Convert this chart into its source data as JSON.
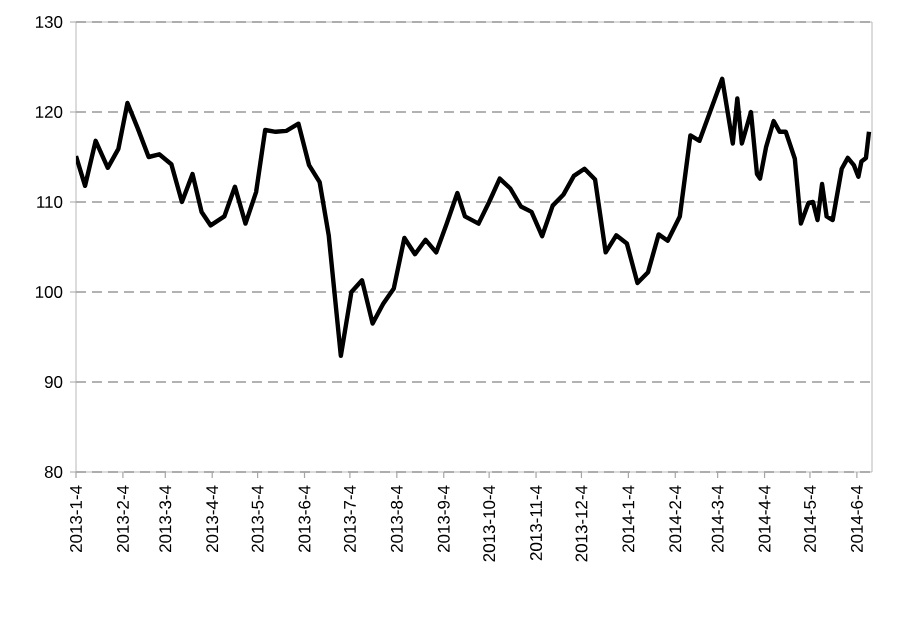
{
  "chart_data": {
    "type": "line",
    "color": "#000000",
    "line_style": "solid",
    "grid": "y",
    "x": [
      "2013-01-04",
      "2013-01-10",
      "2013-01-17",
      "2013-01-25",
      "2013-02-01",
      "2013-02-07",
      "2013-02-14",
      "2013-02-21",
      "2013-02-28",
      "2013-03-08",
      "2013-03-15",
      "2013-03-22",
      "2013-03-28",
      "2013-04-03",
      "2013-04-12",
      "2013-04-19",
      "2013-04-26",
      "2013-05-03",
      "2013-05-09",
      "2013-05-16",
      "2013-05-23",
      "2013-05-31",
      "2013-06-07",
      "2013-06-14",
      "2013-06-20",
      "2013-06-28",
      "2013-07-05",
      "2013-07-12",
      "2013-07-19",
      "2013-07-26",
      "2013-08-02",
      "2013-08-09",
      "2013-08-16",
      "2013-08-23",
      "2013-08-30",
      "2013-09-06",
      "2013-09-13",
      "2013-09-18",
      "2013-09-27",
      "2013-10-04",
      "2013-10-11",
      "2013-10-18",
      "2013-10-25",
      "2013-11-01",
      "2013-11-08",
      "2013-11-15",
      "2013-11-22",
      "2013-11-29",
      "2013-12-06",
      "2013-12-13",
      "2013-12-20",
      "2013-12-27",
      "2014-01-03",
      "2014-01-10",
      "2014-01-17",
      "2014-01-24",
      "2014-01-30",
      "2014-02-07",
      "2014-02-14",
      "2014-02-20",
      "2014-03-07",
      "2014-03-14",
      "2014-03-17",
      "2014-03-20",
      "2014-03-26",
      "2014-03-30",
      "2014-04-01",
      "2014-04-05",
      "2014-04-10",
      "2014-04-14",
      "2014-04-18",
      "2014-04-24",
      "2014-04-28",
      "2014-05-03",
      "2014-05-06",
      "2014-05-09",
      "2014-05-12",
      "2014-05-15",
      "2014-05-19",
      "2014-05-25",
      "2014-05-29",
      "2014-06-02",
      "2014-06-05",
      "2014-06-07",
      "2014-06-10",
      "2014-06-12"
    ],
    "values": [
      115.1,
      111.8,
      116.8,
      113.8,
      115.9,
      121.0,
      118.1,
      115.0,
      115.3,
      114.2,
      110.0,
      113.1,
      108.9,
      107.4,
      108.4,
      111.7,
      107.6,
      111.1,
      118.0,
      117.8,
      117.9,
      118.7,
      114.1,
      112.2,
      106.3,
      92.9,
      100.0,
      101.3,
      96.5,
      98.7,
      100.4,
      106.0,
      104.2,
      105.8,
      104.4,
      107.6,
      111.0,
      108.4,
      107.6,
      110.0,
      112.6,
      111.5,
      109.5,
      108.9,
      106.2,
      109.6,
      110.8,
      112.9,
      113.7,
      112.5,
      104.4,
      106.3,
      105.4,
      101.0,
      102.2,
      106.4,
      105.7,
      108.4,
      117.4,
      116.8,
      123.7,
      116.5,
      121.5,
      116.5,
      120.0,
      113.1,
      112.6,
      116.1,
      119.0,
      117.8,
      117.8,
      114.8,
      107.6,
      109.9,
      110.0,
      108.0,
      112.0,
      108.4,
      108.0,
      113.7,
      114.9,
      114.1,
      112.8,
      114.5,
      114.9,
      117.8
    ],
    "xlim": [
      "2013-01-04",
      "2014-06-14"
    ],
    "xticks": [
      {
        "value": "2013-01-04",
        "label": "2013-1-4"
      },
      {
        "value": "2013-02-04",
        "label": "2013-2-4"
      },
      {
        "value": "2013-03-04",
        "label": "2013-3-4"
      },
      {
        "value": "2013-04-04",
        "label": "2013-4-4"
      },
      {
        "value": "2013-05-04",
        "label": "2013-5-4"
      },
      {
        "value": "2013-06-04",
        "label": "2013-6-4"
      },
      {
        "value": "2013-07-04",
        "label": "2013-7-4"
      },
      {
        "value": "2013-08-04",
        "label": "2013-8-4"
      },
      {
        "value": "2013-09-04",
        "label": "2013-9-4"
      },
      {
        "value": "2013-10-04",
        "label": "2013-10-4"
      },
      {
        "value": "2013-11-04",
        "label": "2013-11-4"
      },
      {
        "value": "2013-12-04",
        "label": "2013-12-4"
      },
      {
        "value": "2014-01-04",
        "label": "2014-1-4"
      },
      {
        "value": "2014-02-04",
        "label": "2014-2-4"
      },
      {
        "value": "2014-03-04",
        "label": "2014-3-4"
      },
      {
        "value": "2014-04-04",
        "label": "2014-4-4"
      },
      {
        "value": "2014-05-04",
        "label": "2014-5-4"
      },
      {
        "value": "2014-06-04",
        "label": "2014-6-4"
      }
    ],
    "ylim": [
      80,
      130
    ],
    "yticks": [
      80,
      90,
      100,
      110,
      120,
      130
    ]
  }
}
